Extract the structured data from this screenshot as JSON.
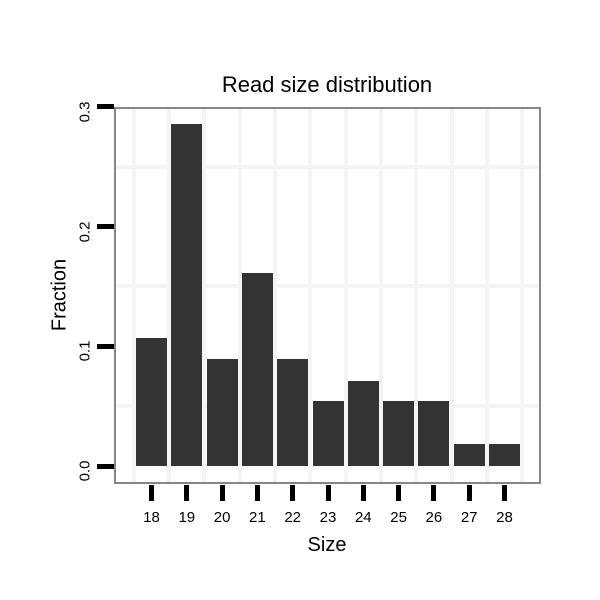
{
  "chart": {
    "title": "Read size distribution",
    "x_axis": {
      "label": "Size",
      "tick_labels": [
        "18",
        "19",
        "20",
        "21",
        "22",
        "23",
        "24",
        "25",
        "26",
        "27",
        "28"
      ]
    },
    "y_axis": {
      "label": "Fraction",
      "tick_labels": [
        "0.0",
        "0.1",
        "0.2",
        "0.3"
      ]
    },
    "colors": {
      "bar": "#333333",
      "panel_border": "#878787",
      "gridline": "#f4f4f4",
      "tick": "#000000",
      "text": "#000000",
      "background": "#ffffff"
    }
  },
  "chart_data": {
    "type": "bar",
    "title": "Read size distribution",
    "xlabel": "Size",
    "ylabel": "Fraction",
    "categories": [
      18,
      19,
      20,
      21,
      22,
      23,
      24,
      25,
      26,
      27,
      28
    ],
    "values": [
      0.107,
      0.286,
      0.089,
      0.161,
      0.089,
      0.054,
      0.071,
      0.054,
      0.054,
      0.018,
      0.018
    ],
    "y_ticks": [
      0.0,
      0.1,
      0.2,
      0.3
    ],
    "ylim": [
      -0.013,
      0.302
    ],
    "grid": {
      "horizontal_lines_at": [
        0.05,
        0.15,
        0.25
      ],
      "vertical_lines": "midpoints between categories"
    },
    "legend_position": "none"
  }
}
